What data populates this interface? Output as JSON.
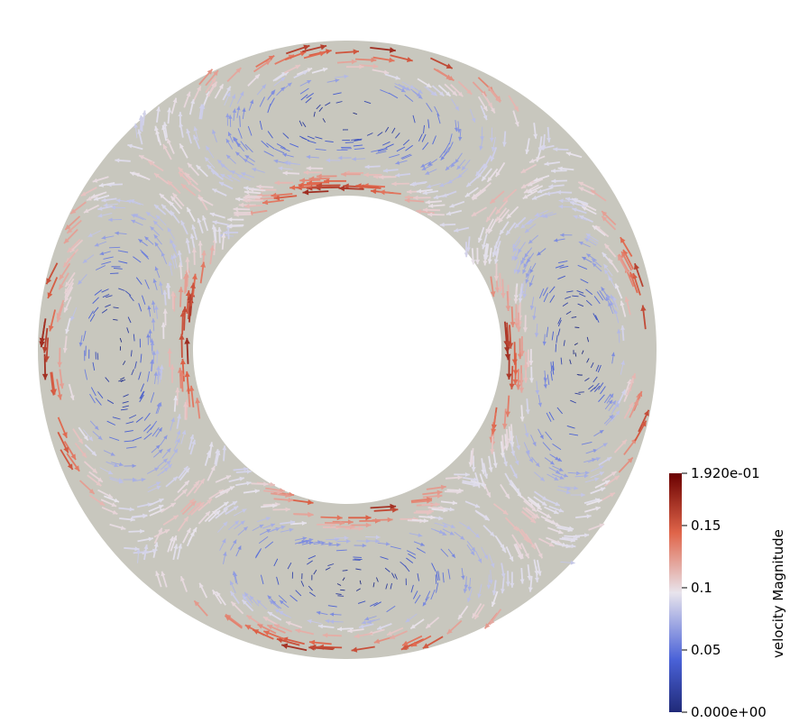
{
  "colorbar": {
    "title": "velocity Magnitude",
    "ticks": [
      {
        "label": "1.920e-01",
        "value": 0.192
      },
      {
        "label": "0.15",
        "value": 0.15
      },
      {
        "label": "0.1",
        "value": 0.1
      },
      {
        "label": "0.05",
        "value": 0.05
      },
      {
        "label": "0.000e+00",
        "value": 0.0
      }
    ],
    "min": 0.0,
    "max": 0.192,
    "colormap": [
      "#3b4cc0",
      "#dddddd",
      "#b40426",
      "#6a0000"
    ]
  },
  "annulus": {
    "fill": "#c8c7be",
    "background": "#ffffff"
  },
  "colors": {
    "low": "#3b4cc0",
    "mid": "#dddddd",
    "high": "#b40426",
    "max": "#6a0000"
  }
}
